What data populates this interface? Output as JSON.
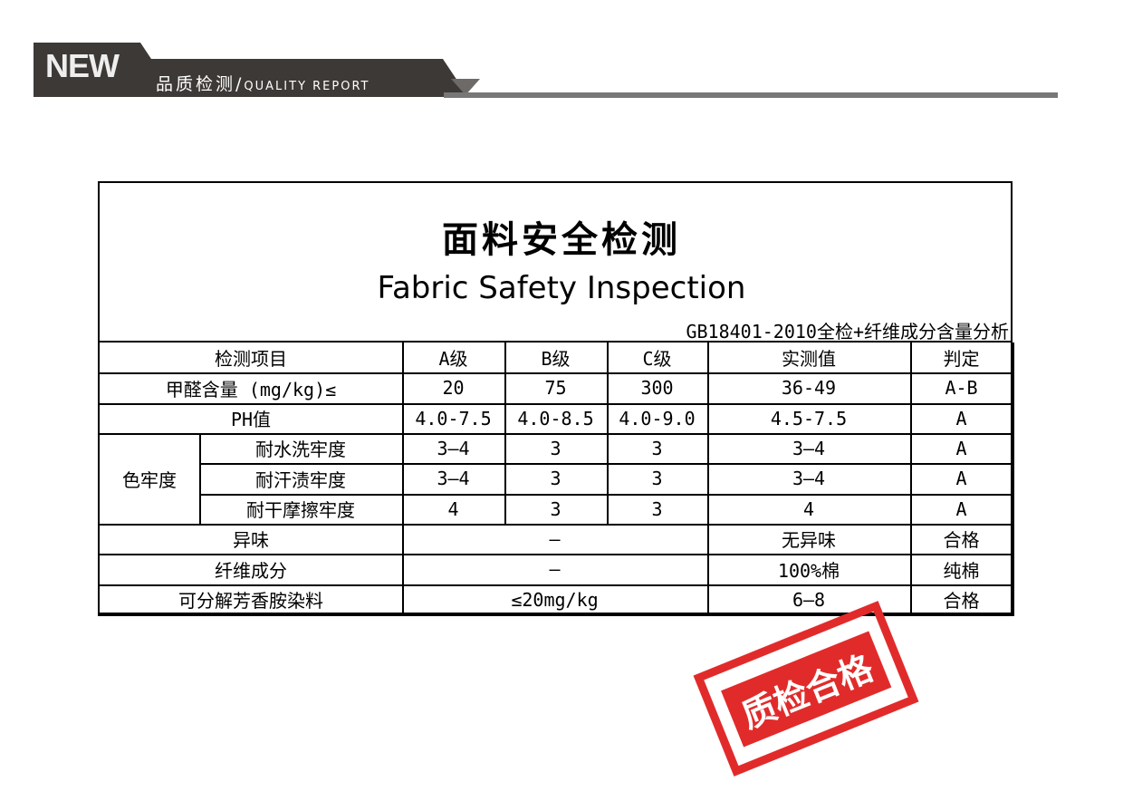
{
  "header": {
    "new": "NEW",
    "title_cn": "品质检测/",
    "title_en": "QUALITY REPORT"
  },
  "doc": {
    "title_cn": "面料安全检测",
    "title_en": "Fabric Safety Inspection",
    "standard": "GB18401-2010全检+纤维成分含量分析"
  },
  "table": {
    "headers": [
      "检测项目",
      "A级",
      "B级",
      "C级",
      "实测值",
      "判定"
    ],
    "group_label": "色牢度",
    "rows": [
      {
        "item": "甲醛含量 (mg/kg)≤",
        "a": "20",
        "b": "75",
        "c": "300",
        "measured": "36-49",
        "result": "A-B"
      },
      {
        "item": "PH值",
        "a": "4.0-7.5",
        "b": "4.0-8.5",
        "c": "4.0-9.0",
        "measured": "4.5-7.5",
        "result": "A"
      },
      {
        "item": "耐水洗牢度",
        "a": "3—4",
        "b": "3",
        "c": "3",
        "measured": "3—4",
        "result": "A"
      },
      {
        "item": "耐汗渍牢度",
        "a": "3—4",
        "b": "3",
        "c": "3",
        "measured": "3—4",
        "result": "A"
      },
      {
        "item": "耐干摩擦牢度",
        "a": "4",
        "b": "3",
        "c": "3",
        "measured": "4",
        "result": "A"
      },
      {
        "item": "异味",
        "span": "—",
        "measured": "无异味",
        "result": "合格"
      },
      {
        "item": "纤维成分",
        "span": "—",
        "measured": "100%棉",
        "result": "纯棉"
      },
      {
        "item": "可分解芳香胺染料",
        "span": "≤20mg/kg",
        "measured": "6—8",
        "result": "合格"
      }
    ]
  },
  "stamp": {
    "text": "质检合格",
    "color": "#e12b2b"
  }
}
